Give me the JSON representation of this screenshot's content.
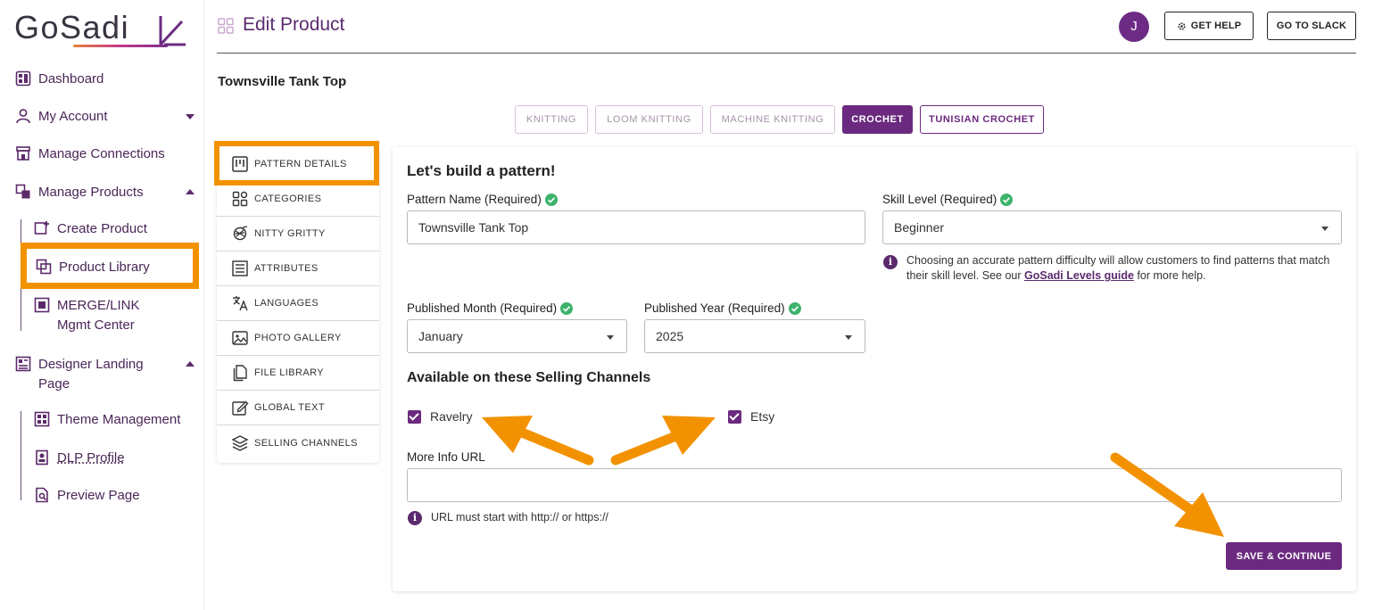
{
  "app": {
    "logo_text": "GoSadi",
    "accent_color": "#6b2a7f",
    "highlight_color": "#f39200"
  },
  "sidebar": {
    "items": [
      {
        "label": "Dashboard",
        "icon": "dashboard-icon"
      },
      {
        "label": "My Account",
        "icon": "user-icon",
        "expandable": true,
        "expanded": false
      },
      {
        "label": "Manage Connections",
        "icon": "store-icon"
      },
      {
        "label": "Manage Products",
        "icon": "products-icon",
        "expandable": true,
        "expanded": true
      },
      {
        "label": "Create Product",
        "icon": "create-product-icon",
        "sub": true
      },
      {
        "label": "Product Library",
        "icon": "library-icon",
        "sub": true,
        "highlighted": true
      },
      {
        "label": "MERGE/LINK",
        "label_line2": "Mgmt Center",
        "icon": "merge-icon",
        "sub": true
      },
      {
        "label": "Designer Landing",
        "label_line2": "Page",
        "icon": "landing-icon",
        "expandable": true,
        "expanded": true
      },
      {
        "label": "Theme Management",
        "icon": "theme-icon",
        "sub": true
      },
      {
        "label": "DLP Profile",
        "icon": "profile-icon",
        "sub": true
      },
      {
        "label": "Preview Page",
        "icon": "preview-icon",
        "sub": true
      }
    ]
  },
  "header": {
    "title": "Edit Product",
    "avatar_initial": "J",
    "get_help_label": "GET HELP",
    "go_to_slack_label": "GO TO SLACK"
  },
  "product": {
    "name": "Townsville Tank Top"
  },
  "craft_tabs": [
    {
      "label": "KNITTING",
      "state": "inactive"
    },
    {
      "label": "LOOM KNITTING",
      "state": "inactive"
    },
    {
      "label": "MACHINE KNITTING",
      "state": "inactive"
    },
    {
      "label": "CROCHET",
      "state": "active"
    },
    {
      "label": "TUNISIAN CROCHET",
      "state": "outlined"
    }
  ],
  "side_menu": {
    "items": [
      {
        "label": "PATTERN DETAILS",
        "icon": "pattern-details-icon",
        "active": true
      },
      {
        "label": "CATEGORIES",
        "icon": "categories-icon"
      },
      {
        "label": "NITTY GRITTY",
        "icon": "yarn-icon"
      },
      {
        "label": "ATTRIBUTES",
        "icon": "attributes-icon"
      },
      {
        "label": "LANGUAGES",
        "icon": "translate-icon"
      },
      {
        "label": "PHOTO GALLERY",
        "icon": "photo-icon"
      },
      {
        "label": "FILE LIBRARY",
        "icon": "file-icon"
      },
      {
        "label": "GLOBAL TEXT",
        "icon": "edit-icon"
      },
      {
        "label": "SELLING CHANNELS",
        "icon": "channels-icon"
      }
    ]
  },
  "form": {
    "heading": "Let's build a pattern!",
    "pattern_name_label": "Pattern Name (Required)",
    "pattern_name_value": "Townsville Tank Top",
    "skill_level_label": "Skill Level (Required)",
    "skill_level_value": "Beginner",
    "skill_help_prefix": "Choosing an accurate pattern difficulty will allow customers to find patterns that match their skill level. See our ",
    "skill_help_link": "GoSadi Levels guide",
    "skill_help_suffix": " for more help.",
    "published_month_label": "Published Month (Required)",
    "published_month_value": "January",
    "published_year_label": "Published Year (Required)",
    "published_year_value": "2025",
    "channels_heading": "Available on these Selling Channels",
    "channels": [
      {
        "label": "Ravelry",
        "checked": true
      },
      {
        "label": "Etsy",
        "checked": true
      }
    ],
    "more_info_label": "More Info URL",
    "more_info_value": "",
    "url_help": "URL must start with http:// or https://",
    "save_label": "SAVE & CONTINUE"
  }
}
